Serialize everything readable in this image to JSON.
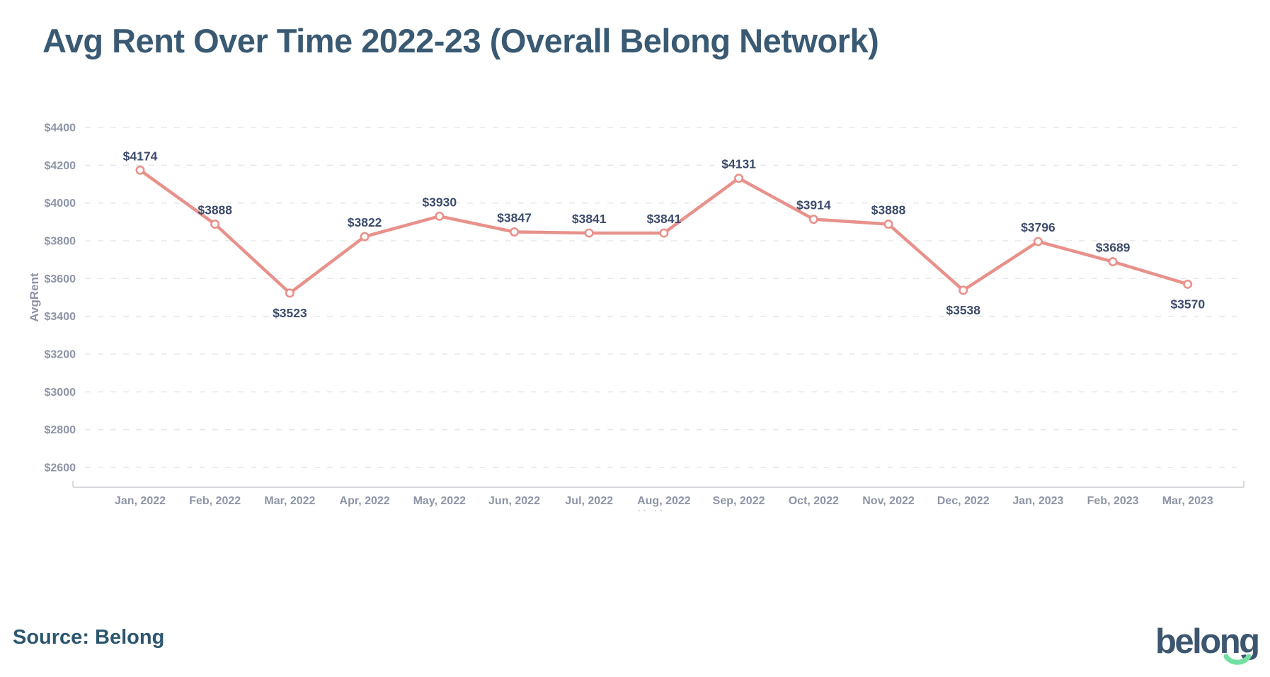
{
  "page": {
    "title": "Avg Rent Over Time 2022-23 (Overall Belong Network)",
    "title_color": "#3A5A74",
    "background": "#FFFFFF"
  },
  "chart_data": {
    "type": "line",
    "title": "Avg Rent Over Time 2022-23 (Overall Belong Network)",
    "categories": [
      "Jan, 2022",
      "Feb, 2022",
      "Mar, 2022",
      "Apr, 2022",
      "May, 2022",
      "Jun, 2022",
      "Jul, 2022",
      "Aug, 2022",
      "Sep, 2022",
      "Oct, 2022",
      "Nov, 2022",
      "Dec, 2022",
      "Jan, 2023",
      "Feb, 2023",
      "Mar, 2023"
    ],
    "values": [
      4174,
      3888,
      3523,
      3822,
      3930,
      3847,
      3841,
      3841,
      4131,
      3914,
      3888,
      3538,
      3796,
      3689,
      3570
    ],
    "point_labels": [
      "$4174",
      "$3888",
      "$3523",
      "$3822",
      "$3930",
      "$3847",
      "$3841",
      "$3841",
      "$4131",
      "$3914",
      "$3888",
      "$3538",
      "$3796",
      "$3689",
      "$3570"
    ],
    "labels_below_point_indices": [
      2,
      11,
      14
    ],
    "xlabel": "",
    "ylabel": "AvgRent",
    "y_ticks": [
      "$4400",
      "$4200",
      "$4000",
      "$3800",
      "$3600",
      "$3400",
      "$3200",
      "$3000",
      "$2800",
      "$2600"
    ],
    "y_tick_values": [
      4400,
      4200,
      4000,
      3800,
      3600,
      3400,
      3200,
      3000,
      2800,
      2600
    ],
    "ylim": [
      2600,
      4400
    ],
    "grid": "horizontal-dashed",
    "legend": "none",
    "colors": {
      "line": "#E8918B",
      "marker_fill": "#FFFFFF",
      "marker_stroke": "#E8918B",
      "point_label": "#3E4C6B",
      "tick_label": "#8D94A6",
      "axis_title": "#8D94A6",
      "axis_line": "#D9DADF",
      "gridline": "#E7E8EC"
    }
  },
  "decor": {
    "stray_marks": "·· ··"
  },
  "footer": {
    "source": "Source: Belong",
    "source_color": "#2C566F",
    "logo_text": "belong",
    "logo_color": "#3D5670",
    "logo_smile_color": "#72E0A2"
  }
}
